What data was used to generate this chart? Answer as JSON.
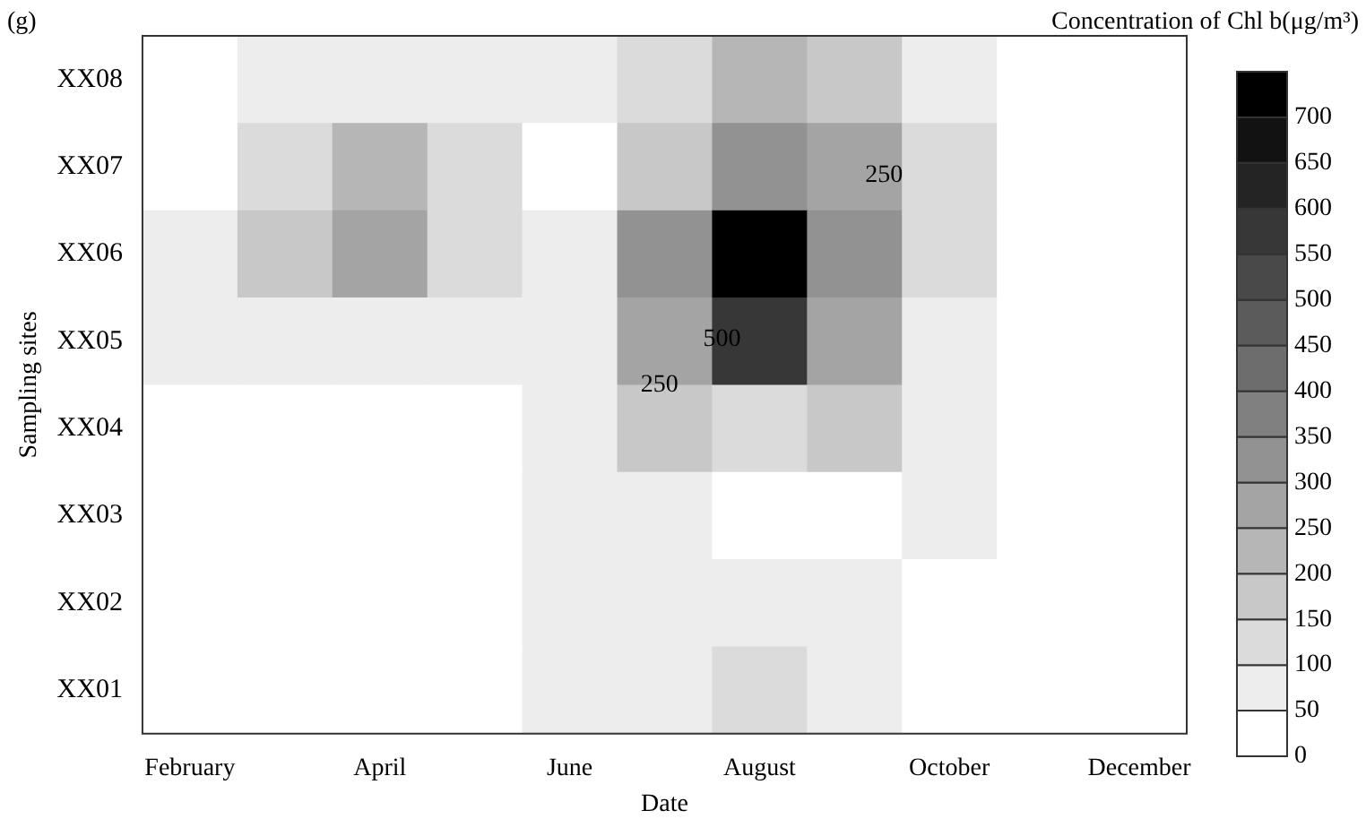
{
  "chart_data": {
    "type": "heatmap",
    "title": "(g)",
    "xlabel": "Date",
    "ylabel": "Sampling sites",
    "clabel": "Concentration of Chl b(μg/m³)",
    "categories": [
      "February",
      null,
      "April",
      null,
      "June",
      null,
      "August",
      null,
      "October",
      null,
      "December"
    ],
    "y_categories": [
      "XX08",
      "XX07",
      "XX06",
      "XX05",
      "XX04",
      "XX03",
      "XX02",
      "XX01"
    ],
    "cells": [
      [
        20,
        60,
        60,
        60,
        60,
        120,
        200,
        160,
        80,
        30,
        10
      ],
      [
        40,
        120,
        200,
        120,
        30,
        150,
        300,
        250,
        100,
        30,
        10
      ],
      [
        50,
        150,
        290,
        130,
        70,
        300,
        720,
        300,
        100,
        20,
        10
      ],
      [
        60,
        60,
        70,
        70,
        60,
        280,
        550,
        280,
        90,
        20,
        10
      ],
      [
        20,
        20,
        20,
        30,
        60,
        150,
        130,
        180,
        70,
        20,
        10
      ],
      [
        10,
        10,
        10,
        20,
        70,
        60,
        30,
        40,
        70,
        20,
        10
      ],
      [
        10,
        10,
        10,
        20,
        60,
        70,
        70,
        60,
        20,
        10,
        10
      ],
      [
        10,
        10,
        10,
        20,
        60,
        70,
        110,
        60,
        20,
        10,
        10
      ]
    ],
    "clim": [
      0,
      750
    ],
    "cticks": [
      0,
      50,
      100,
      150,
      200,
      250,
      300,
      350,
      400,
      450,
      500,
      550,
      600,
      650,
      700
    ],
    "annotations": [
      "250",
      "500",
      "250"
    ]
  }
}
